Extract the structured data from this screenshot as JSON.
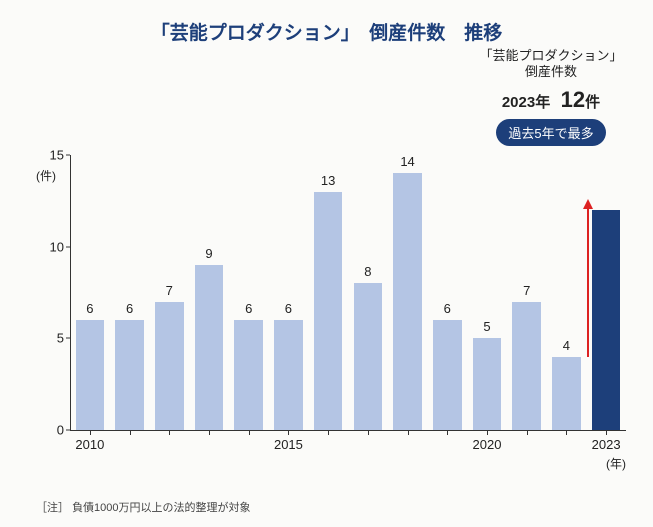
{
  "title": {
    "text": "「芸能プロダクション」　倒産件数　推移",
    "fontsize": 19
  },
  "annotation": {
    "line1": "「芸能プロダクション」",
    "line2": "倒産件数",
    "year": "2023年",
    "count": "12",
    "count_suffix": "件",
    "pill": "過去5年で最多"
  },
  "chart": {
    "type": "bar",
    "years": [
      2010,
      2011,
      2012,
      2013,
      2014,
      2015,
      2016,
      2017,
      2018,
      2019,
      2020,
      2021,
      2022,
      2023
    ],
    "values": [
      6,
      6,
      7,
      9,
      6,
      6,
      13,
      8,
      14,
      6,
      5,
      7,
      4,
      12
    ],
    "bar_colors": [
      "#b4c5e4",
      "#b4c5e4",
      "#b4c5e4",
      "#b4c5e4",
      "#b4c5e4",
      "#b4c5e4",
      "#b4c5e4",
      "#b4c5e4",
      "#b4c5e4",
      "#b4c5e4",
      "#b4c5e4",
      "#b4c5e4",
      "#b4c5e4",
      "#1d3f7a"
    ],
    "ylim": [
      0,
      15
    ],
    "yticks": [
      0,
      5,
      10,
      15
    ],
    "yunit": "(件)",
    "xticks_shown": [
      2010,
      2015,
      2020,
      2023
    ],
    "xunit": "(年)",
    "bar_width": 0.72,
    "plot_background": "#fbfbf9",
    "axis_color": "#333333",
    "label_fontsize": 13,
    "arrow": {
      "from_year": 2022,
      "from_value": 4,
      "to_value": 12.5,
      "color": "#d22"
    }
  },
  "footnote": {
    "label": "［注］",
    "text": "負債1000万円以上の法的整理が対象"
  }
}
